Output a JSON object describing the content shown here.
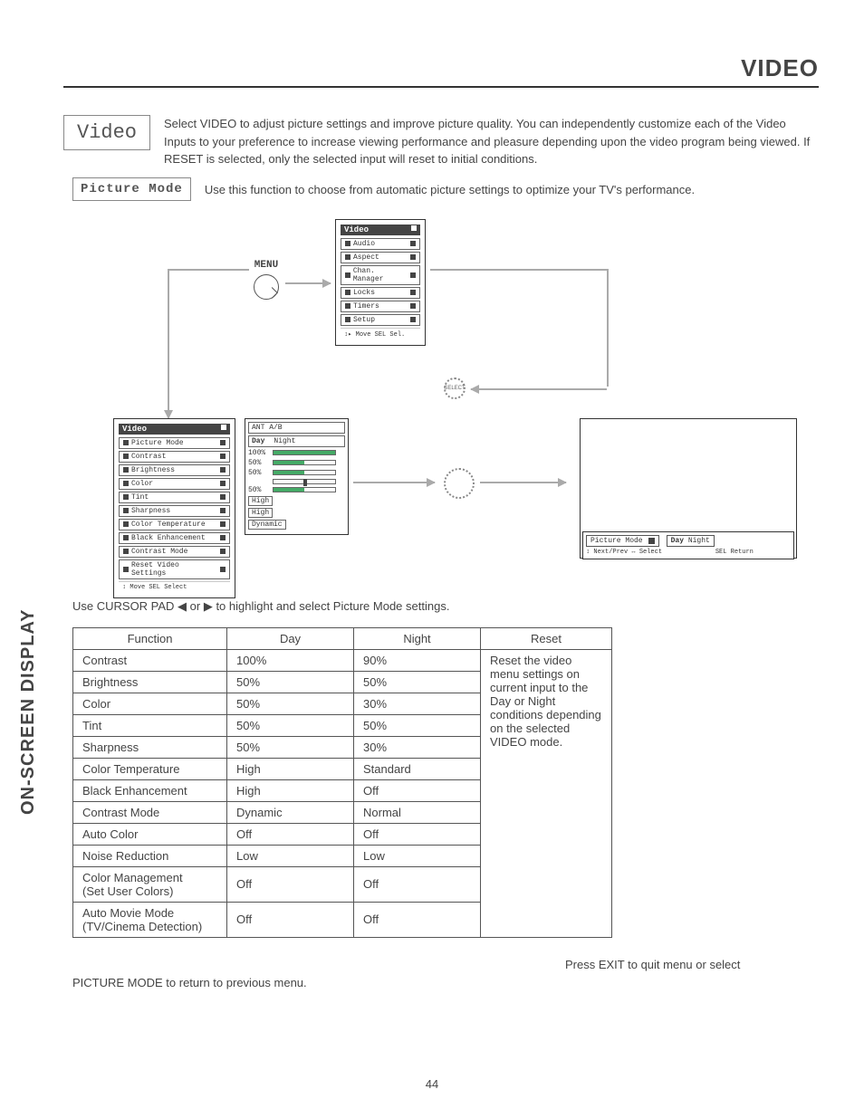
{
  "side_label": "ON-SCREEN DISPLAY",
  "page_title": "VIDEO",
  "video_box": "Video",
  "video_intro": "Select VIDEO to adjust picture settings and improve picture quality.  You can independently customize each of the Video Inputs to your preference to increase viewing performance and pleasure depending upon the video program being viewed.  If RESET is selected, only the selected input will reset to initial conditions.",
  "picture_mode_box": "Picture Mode",
  "picture_mode_intro": "Use this function to choose from automatic picture settings to optimize your TV's performance.",
  "menu_label": "MENU",
  "select_label": "SELECT",
  "main_menu": {
    "title": "Video",
    "items": [
      "Audio",
      "Aspect",
      "Chan. Manager",
      "Locks",
      "Timers",
      "Setup"
    ],
    "hint": "Move   SEL Sel."
  },
  "video_menu": {
    "title": "Video",
    "items": [
      "Picture Mode",
      "Contrast",
      "Brightness",
      "Color",
      "Tint",
      "Sharpness",
      "Color Temperature",
      "Black Enhancement",
      "Contrast Mode",
      "Reset Video Settings"
    ],
    "hint": "Move   SEL Select"
  },
  "settings_panel": {
    "header": "ANT A/B",
    "day": "Day",
    "night": "Night",
    "rows": [
      {
        "val": "100%",
        "bar": 100
      },
      {
        "val": "50%",
        "bar": 50
      },
      {
        "val": "50%",
        "bar": 50
      },
      {
        "val": "",
        "bar": 50,
        "tint": true
      },
      {
        "val": "50%",
        "bar": 50
      },
      {
        "val": "High",
        "bar": 0
      },
      {
        "val": "High",
        "bar": 0
      },
      {
        "val": "Dynamic",
        "bar": 0
      }
    ]
  },
  "mode_strip": {
    "label": "Picture Mode",
    "day": "Day",
    "night": "Night",
    "hint1": "Next/Prev",
    "hint2": "Select",
    "hint3": "SEL Return"
  },
  "cursor_text": "Use CURSOR PAD ◀ or ▶ to highlight and select Picture Mode settings.",
  "table": {
    "headers": [
      "Function",
      "Day",
      "Night",
      "Reset"
    ],
    "reset_text": "Reset the video menu settings on current input to the Day or Night conditions depending on the selected VIDEO mode.",
    "rows": [
      [
        "Contrast",
        "100%",
        "90%"
      ],
      [
        "Brightness",
        "50%",
        "50%"
      ],
      [
        "Color",
        "50%",
        "30%"
      ],
      [
        "Tint",
        "50%",
        "50%"
      ],
      [
        "Sharpness",
        "50%",
        "30%"
      ],
      [
        "Color Temperature",
        "High",
        "Standard"
      ],
      [
        "Black Enhancement",
        "High",
        "Off"
      ],
      [
        "Contrast Mode",
        "Dynamic",
        "Normal"
      ],
      [
        "Auto Color",
        "Off",
        "Off"
      ],
      [
        "Noise Reduction",
        "Low",
        "Low"
      ],
      [
        "Color Management (Set User Colors)",
        "Off",
        "Off"
      ],
      [
        "Auto Movie Mode (TV/Cinema Detection)",
        "Off",
        "Off"
      ]
    ]
  },
  "footer_right": "Press EXIT to quit menu or select",
  "footer_left": "PICTURE MODE to return to previous menu.",
  "page_number": "44",
  "colors": {
    "text": "#444444",
    "border": "#555555",
    "osd_dark": "#444444",
    "arrow": "#aaaaaa",
    "bar_fill": "#4a6"
  }
}
